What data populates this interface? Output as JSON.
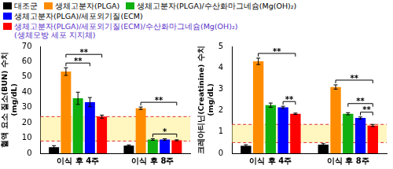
{
  "chart_data": [
    {
      "type": "bar",
      "y_label": [
        "혈액 요소 질소(BUN) 수치",
        "(mg/dL)"
      ],
      "categories": [
        "이식 후 4주",
        "이식 후 8주"
      ],
      "series": [
        {
          "name": "대조군",
          "color": "#000000",
          "values": [
            4,
            5
          ],
          "errors": [
            1,
            0.5
          ]
        },
        {
          "name": "생체고분자(PLGA)",
          "color": "#ff8c00",
          "values": [
            53.5,
            29.5
          ],
          "errors": [
            2.5,
            0.8
          ]
        },
        {
          "name": "생체고분자(PLGA)/수산화마그네슘(Mg(OH)₂)",
          "color": "#10b010",
          "values": [
            36,
            9
          ],
          "errors": [
            4,
            0.5
          ]
        },
        {
          "name": "생체고분자(PLGA)/세포외기질(ECM)",
          "color": "#0000ff",
          "values": [
            33.5,
            9
          ],
          "errors": [
            3,
            0.5
          ]
        },
        {
          "name": "생체고분자(PLGA)/세포외기질(ECM)/수산화마그네슘(Mg(OH)₂)\n(생체모방 세포 지지체)",
          "color": "#ff0000",
          "values": [
            24,
            8.5
          ],
          "errors": [
            1,
            0.3
          ]
        }
      ],
      "normal_range": [
        8,
        24
      ],
      "significance": [
        {
          "category": 0,
          "from": 1,
          "to": 3,
          "label": "**"
        },
        {
          "category": 0,
          "from": 1,
          "to": 4,
          "label": "**"
        },
        {
          "category": 1,
          "from": 2,
          "to": 4,
          "label": "*"
        },
        {
          "category": 1,
          "from": 1,
          "to": 4,
          "label": "**"
        }
      ],
      "ylim": [
        0,
        70
      ],
      "yticks": [
        0,
        10,
        20,
        30,
        40,
        50,
        60,
        70
      ],
      "grid": false
    },
    {
      "type": "bar",
      "y_label": [
        "크레아티닌(Creatinine) 수치",
        "(mg/dL)"
      ],
      "categories": [
        "이식 후 4주",
        "이식 후 8주"
      ],
      "series": [
        {
          "name": "대조군",
          "color": "#000000",
          "values": [
            0.35,
            0.4
          ],
          "errors": [
            0.05,
            0.05
          ]
        },
        {
          "name": "생체고분자(PLGA)",
          "color": "#ff8c00",
          "values": [
            4.3,
            3.1
          ],
          "errors": [
            0.15,
            0.1
          ]
        },
        {
          "name": "생체고분자(PLGA)/수산화마그네슘(Mg(OH)₂)",
          "color": "#10b010",
          "values": [
            2.25,
            1.85
          ],
          "errors": [
            0.1,
            0.05
          ]
        },
        {
          "name": "생체고분자(PLGA)/세포외기질(ECM)",
          "color": "#0000ff",
          "values": [
            2.15,
            1.65
          ],
          "errors": [
            0.05,
            0.05
          ]
        },
        {
          "name": "생체고분자(PLGA)/세포외기질(ECM)/수산화마그네슘(Mg(OH)₂)\n(생체모방 세포 지지체)",
          "color": "#ff0000",
          "values": [
            1.85,
            1.3
          ],
          "errors": [
            0.03,
            0.05
          ]
        }
      ],
      "normal_range": [
        0.5,
        1.35
      ],
      "significance": [
        {
          "category": 0,
          "from": 3,
          "to": 4,
          "label": "**"
        },
        {
          "category": 0,
          "from": 1,
          "to": 4,
          "label": "**"
        },
        {
          "category": 1,
          "from": 3,
          "to": 4,
          "label": "**"
        },
        {
          "category": 1,
          "from": 2,
          "to": 4,
          "label": "**"
        },
        {
          "category": 1,
          "from": 1,
          "to": 4,
          "label": "**"
        }
      ],
      "ylim": [
        0,
        5
      ],
      "yticks": [
        0,
        1,
        2,
        3,
        4,
        5
      ],
      "grid": false
    }
  ]
}
